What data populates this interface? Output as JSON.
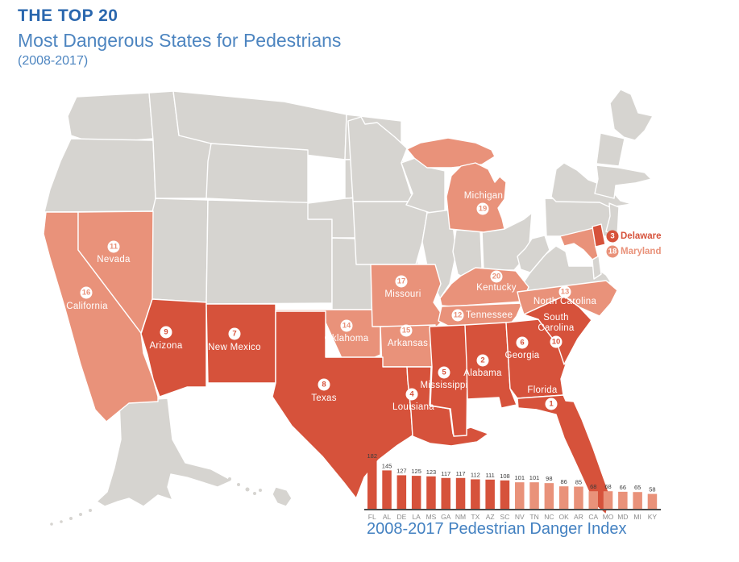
{
  "header": {
    "title": "THE TOP 20",
    "subtitle": "Most Dangerous States for Pedestrians",
    "period": "(2008-2017)"
  },
  "colors": {
    "rank_1_10": "#d6523b",
    "rank_11_20": "#e9927a",
    "inactive_state": "#d6d4d0",
    "title_blue": "#2a67ae",
    "subtitle_blue": "#4d85c0",
    "caption_blue": "#4381c1"
  },
  "map": {
    "states": [
      {
        "abbr": "FL",
        "name": "Florida",
        "rank": 1,
        "tier": "dark"
      },
      {
        "abbr": "AL",
        "name": "Alabama",
        "rank": 2,
        "tier": "dark"
      },
      {
        "abbr": "DE",
        "name": "Delaware",
        "rank": 3,
        "tier": "dark"
      },
      {
        "abbr": "LA",
        "name": "Louisiana",
        "rank": 4,
        "tier": "dark"
      },
      {
        "abbr": "MS",
        "name": "Mississippi",
        "rank": 5,
        "tier": "dark"
      },
      {
        "abbr": "GA",
        "name": "Georgia",
        "rank": 6,
        "tier": "dark"
      },
      {
        "abbr": "NM",
        "name": "New Mexico",
        "rank": 7,
        "tier": "dark"
      },
      {
        "abbr": "TX",
        "name": "Texas",
        "rank": 8,
        "tier": "dark"
      },
      {
        "abbr": "AZ",
        "name": "Arizona",
        "rank": 9,
        "tier": "dark"
      },
      {
        "abbr": "SC",
        "name": "South Carolina",
        "rank": 10,
        "tier": "dark"
      },
      {
        "abbr": "NV",
        "name": "Nevada",
        "rank": 11,
        "tier": "light"
      },
      {
        "abbr": "TN",
        "name": "Tennessee",
        "rank": 12,
        "tier": "light"
      },
      {
        "abbr": "NC",
        "name": "North Carolina",
        "rank": 13,
        "tier": "light"
      },
      {
        "abbr": "OK",
        "name": "Oklahoma",
        "rank": 14,
        "tier": "light"
      },
      {
        "abbr": "AR",
        "name": "Arkansas",
        "rank": 15,
        "tier": "light"
      },
      {
        "abbr": "CA",
        "name": "California",
        "rank": 16,
        "tier": "light"
      },
      {
        "abbr": "MO",
        "name": "Missouri",
        "rank": 17,
        "tier": "light"
      },
      {
        "abbr": "MD",
        "name": "Maryland",
        "rank": 18,
        "tier": "light"
      },
      {
        "abbr": "MI",
        "name": "Michigan",
        "rank": 19,
        "tier": "light"
      },
      {
        "abbr": "KY",
        "name": "Kentucky",
        "rank": 20,
        "tier": "light"
      }
    ]
  },
  "chart_data": {
    "type": "bar",
    "title": "2008-2017 Pedestrian Danger Index",
    "categories": [
      "FL",
      "AL",
      "DE",
      "LA",
      "MS",
      "GA",
      "NM",
      "TX",
      "AZ",
      "SC",
      "NV",
      "TN",
      "NC",
      "OK",
      "AR",
      "CA",
      "MO",
      "MD",
      "MI",
      "KY"
    ],
    "values": [
      182,
      145,
      127,
      125,
      123,
      117,
      117,
      112,
      111,
      108,
      101,
      101,
      98,
      86,
      85,
      68,
      68,
      66,
      65,
      58
    ],
    "series_colors": {
      "ranks_1_10": "#d6523b",
      "ranks_11_20": "#e9927a"
    },
    "ylim": [
      0,
      182
    ],
    "value_labels_shown": true,
    "legend": "none",
    "grid": "off"
  }
}
